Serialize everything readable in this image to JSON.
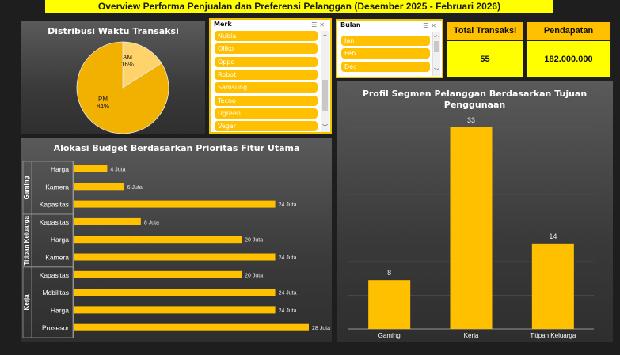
{
  "title": "Overview Performa Penjualan dan Preferensi Pelanggan (Desember 2025 - Februari 2026)",
  "colors": {
    "accent": "#ffc000",
    "yellow": "#ffff00",
    "bar": "#ffc000"
  },
  "pie": {
    "title": "Distribusi Waktu Transaksi",
    "slices": [
      {
        "label": "AM",
        "pct": "16%",
        "value": 16,
        "color": "#ffd36b"
      },
      {
        "label": "PM",
        "pct": "84%",
        "value": 84,
        "color": "#f2b100"
      }
    ]
  },
  "slicer_merk": {
    "header": "Merk",
    "items": [
      "Nubia",
      "Oliko",
      "Oppo",
      "Robot",
      "Samsung",
      "Tecno",
      "Ugreen",
      "Vegar"
    ]
  },
  "slicer_bulan": {
    "header": "Bulan",
    "items": [
      "Jan",
      "Feb",
      "Dec"
    ]
  },
  "kpi": {
    "transaksi_label": "Total Transaksi",
    "transaksi_value": "55",
    "pendapatan_label": "Pendapatan",
    "pendapatan_value": "182.000.000"
  },
  "chart_data": [
    {
      "type": "bar",
      "orientation": "horizontal",
      "title": "Alokasi Budget Berdasarkan Prioritas Fitur Utama",
      "unit": "Juta",
      "groups": [
        {
          "name": "Gaming",
          "items": [
            {
              "label": "Harga",
              "value": 4,
              "text": "4 Juta"
            },
            {
              "label": "Kamera",
              "value": 6,
              "text": "6 Juta"
            },
            {
              "label": "Kapasitas",
              "value": 24,
              "text": "24 Juta"
            }
          ]
        },
        {
          "name": "Titipan Keluarga",
          "items": [
            {
              "label": "Kapasitas",
              "value": 8,
              "text": "8 Juta"
            },
            {
              "label": "Harga",
              "value": 20,
              "text": "20 Juta"
            },
            {
              "label": "Kamera",
              "value": 24,
              "text": "24 Juta"
            }
          ]
        },
        {
          "name": "Kerja",
          "items": [
            {
              "label": "Kapasitas",
              "value": 20,
              "text": "20 Juta"
            },
            {
              "label": "Mobilitas",
              "value": 24,
              "text": "24 Juta"
            },
            {
              "label": "Harga",
              "value": 24,
              "text": "24 Juta"
            },
            {
              "label": "Prosesor",
              "value": 28,
              "text": "28 Juta"
            }
          ]
        }
      ],
      "xlim": [
        0,
        28
      ]
    },
    {
      "type": "bar",
      "title": "Profil Segmen Pelanggan Berdasarkan Tujuan Penggunaan",
      "title_lines": [
        "Profil Segmen Pelanggan Berdasarkan Tujuan",
        "Penggunaan"
      ],
      "categories": [
        "Gaming",
        "Kerja",
        "Titipan Keluarga"
      ],
      "values": [
        8,
        33,
        14
      ],
      "ylim": [
        0,
        33
      ]
    },
    {
      "type": "pie",
      "title": "Distribusi Waktu Transaksi",
      "labels": [
        "AM",
        "PM"
      ],
      "values": [
        16,
        84
      ]
    }
  ]
}
